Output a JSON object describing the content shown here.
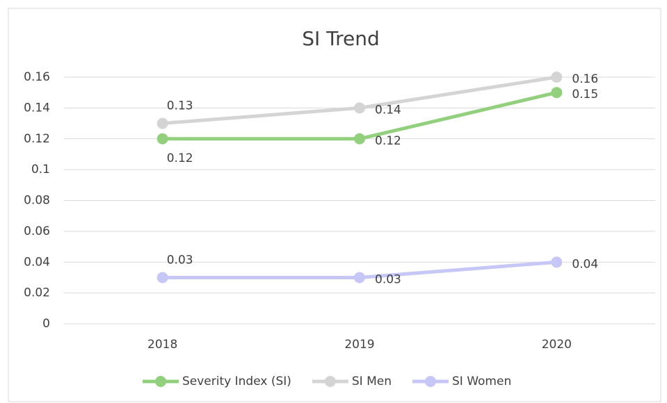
{
  "chart_data": {
    "type": "line",
    "title": "SI Trend",
    "categories": [
      "2018",
      "2019",
      "2020"
    ],
    "series": [
      {
        "name": "Severity Index (SI)",
        "color": "#92d07e",
        "values": [
          0.12,
          0.12,
          0.15
        ]
      },
      {
        "name": "SI Men",
        "color": "#d4d4d4",
        "values": [
          0.13,
          0.14,
          0.16
        ]
      },
      {
        "name": "SI Women",
        "color": "#c6c6f7",
        "values": [
          0.03,
          0.03,
          0.04
        ]
      }
    ],
    "ylim": [
      0,
      0.16
    ],
    "yticks": [
      0,
      0.02,
      0.04,
      0.06,
      0.08,
      0.1,
      0.12,
      0.14,
      0.16
    ],
    "grid": true,
    "legend": "bottom"
  }
}
